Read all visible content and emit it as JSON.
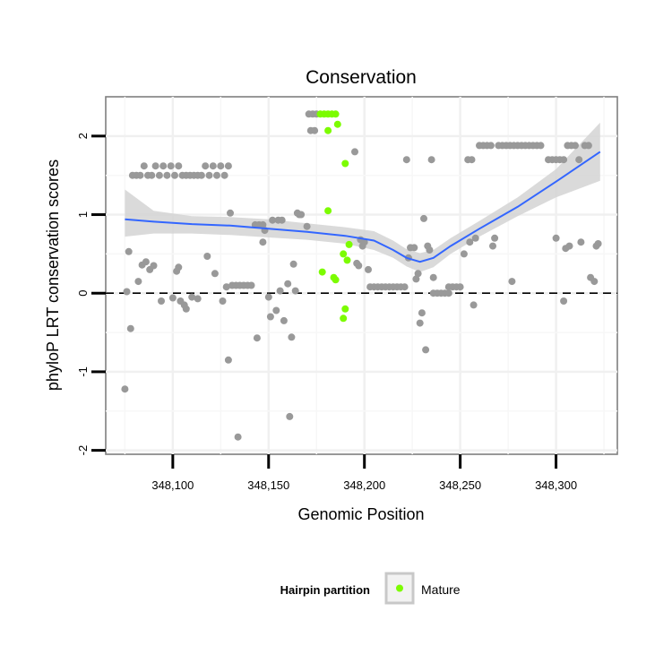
{
  "chart_data": {
    "type": "scatter",
    "title": "Conservation",
    "xlabel": "Genomic Position",
    "ylabel": "phyloP LRT conservation scores",
    "xlim": [
      348065,
      348332
    ],
    "ylim": [
      -2.05,
      2.5
    ],
    "x_ticks": [
      348100,
      348150,
      348200,
      348250,
      348300
    ],
    "x_tick_labels": [
      "348,100",
      "348,150",
      "348,200",
      "348,250",
      "348,300"
    ],
    "y_ticks": [
      -2,
      -1,
      0,
      1,
      2
    ],
    "y_tick_labels": [
      "-2",
      "-1",
      "0",
      "1",
      "2"
    ],
    "reference_line": {
      "y": 0,
      "style": "dashed"
    },
    "grid": true,
    "legend": {
      "title": "Hairpin partition",
      "position": "bottom",
      "entries": [
        {
          "label": "Mature",
          "color": "#7cfc00"
        }
      ]
    },
    "colors": {
      "other": "#999999",
      "mature": "#7cfc00",
      "smooth": "#3366ff",
      "band": "#d3d3d3"
    },
    "series": [
      {
        "name": "Other",
        "points": [
          [
            348075,
            -1.22
          ],
          [
            348076,
            0.02
          ],
          [
            348077,
            0.53
          ],
          [
            348078,
            -0.45
          ],
          [
            348079,
            1.5
          ],
          [
            348081,
            1.5
          ],
          [
            348083,
            1.5
          ],
          [
            348085,
            1.62
          ],
          [
            348087,
            1.5
          ],
          [
            348089,
            1.5
          ],
          [
            348091,
            1.62
          ],
          [
            348093,
            1.5
          ],
          [
            348095,
            1.62
          ],
          [
            348097,
            1.5
          ],
          [
            348099,
            1.62
          ],
          [
            348101,
            1.5
          ],
          [
            348103,
            1.62
          ],
          [
            348105,
            1.5
          ],
          [
            348107,
            1.5
          ],
          [
            348109,
            1.5
          ],
          [
            348111,
            1.5
          ],
          [
            348113,
            1.5
          ],
          [
            348115,
            1.5
          ],
          [
            348117,
            1.62
          ],
          [
            348119,
            1.5
          ],
          [
            348121,
            1.62
          ],
          [
            348123,
            1.5
          ],
          [
            348125,
            1.62
          ],
          [
            348127,
            1.5
          ],
          [
            348129,
            1.62
          ],
          [
            348082,
            0.15
          ],
          [
            348084,
            0.36
          ],
          [
            348086,
            0.4
          ],
          [
            348088,
            0.3
          ],
          [
            348090,
            0.35
          ],
          [
            348094,
            -0.1
          ],
          [
            348100,
            -0.06
          ],
          [
            348102,
            0.28
          ],
          [
            348103,
            0.33
          ],
          [
            348104,
            -0.1
          ],
          [
            348106,
            -0.15
          ],
          [
            348107,
            -0.2
          ],
          [
            348110,
            -0.05
          ],
          [
            348113,
            -0.07
          ],
          [
            348118,
            0.47
          ],
          [
            348122,
            0.25
          ],
          [
            348126,
            -0.1
          ],
          [
            348128,
            0.08
          ],
          [
            348129,
            -0.85
          ],
          [
            348130,
            1.02
          ],
          [
            348131,
            0.1
          ],
          [
            348133,
            0.1
          ],
          [
            348135,
            0.1
          ],
          [
            348137,
            0.1
          ],
          [
            348139,
            0.1
          ],
          [
            348141,
            0.1
          ],
          [
            348134,
            -1.83
          ],
          [
            348143,
            0.87
          ],
          [
            348145,
            0.87
          ],
          [
            348147,
            0.87
          ],
          [
            348144,
            -0.57
          ],
          [
            348147,
            0.65
          ],
          [
            348148,
            0.8
          ],
          [
            348150,
            -0.05
          ],
          [
            348151,
            -0.3
          ],
          [
            348152,
            0.93
          ],
          [
            348154,
            -0.22
          ],
          [
            348155,
            0.93
          ],
          [
            348156,
            0.03
          ],
          [
            348157,
            0.93
          ],
          [
            348158,
            -0.35
          ],
          [
            348160,
            0.12
          ],
          [
            348161,
            -1.57
          ],
          [
            348162,
            -0.56
          ],
          [
            348163,
            0.37
          ],
          [
            348164,
            0.03
          ],
          [
            348165,
            1.02
          ],
          [
            348166,
            1.0
          ],
          [
            348167,
            1.0
          ],
          [
            348170,
            0.85
          ],
          [
            348171,
            2.28
          ],
          [
            348173,
            2.28
          ],
          [
            348175,
            2.28
          ],
          [
            348172,
            2.07
          ],
          [
            348174,
            2.07
          ],
          [
            348195,
            1.8
          ],
          [
            348196,
            0.38
          ],
          [
            348197,
            0.35
          ],
          [
            348198,
            0.68
          ],
          [
            348199,
            0.6
          ],
          [
            348200,
            0.65
          ],
          [
            348202,
            0.3
          ],
          [
            348203,
            0.08
          ],
          [
            348205,
            0.08
          ],
          [
            348207,
            0.08
          ],
          [
            348209,
            0.08
          ],
          [
            348211,
            0.08
          ],
          [
            348213,
            0.08
          ],
          [
            348215,
            0.08
          ],
          [
            348217,
            0.08
          ],
          [
            348219,
            0.08
          ],
          [
            348221,
            0.08
          ],
          [
            348222,
            1.7
          ],
          [
            348223,
            0.45
          ],
          [
            348224,
            0.58
          ],
          [
            348226,
            0.58
          ],
          [
            348227,
            0.18
          ],
          [
            348228,
            0.25
          ],
          [
            348229,
            -0.38
          ],
          [
            348230,
            -0.25
          ],
          [
            348231,
            0.95
          ],
          [
            348232,
            -0.72
          ],
          [
            348233,
            0.6
          ],
          [
            348234,
            0.55
          ],
          [
            348235,
            1.7
          ],
          [
            348236,
            0.2
          ],
          [
            348236,
            0.0
          ],
          [
            348238,
            0.0
          ],
          [
            348240,
            0.0
          ],
          [
            348242,
            0.0
          ],
          [
            348244,
            0.0
          ],
          [
            348244,
            0.08
          ],
          [
            348246,
            0.08
          ],
          [
            348248,
            0.08
          ],
          [
            348250,
            0.08
          ],
          [
            348252,
            0.5
          ],
          [
            348254,
            1.7
          ],
          [
            348256,
            1.7
          ],
          [
            348255,
            0.65
          ],
          [
            348257,
            -0.15
          ],
          [
            348258,
            0.7
          ],
          [
            348260,
            1.88
          ],
          [
            348262,
            1.88
          ],
          [
            348264,
            1.88
          ],
          [
            348266,
            1.88
          ],
          [
            348267,
            0.6
          ],
          [
            348268,
            0.7
          ],
          [
            348270,
            1.88
          ],
          [
            348272,
            1.88
          ],
          [
            348274,
            1.88
          ],
          [
            348276,
            1.88
          ],
          [
            348277,
            0.15
          ],
          [
            348278,
            1.88
          ],
          [
            348280,
            1.88
          ],
          [
            348282,
            1.88
          ],
          [
            348284,
            1.88
          ],
          [
            348286,
            1.88
          ],
          [
            348288,
            1.88
          ],
          [
            348290,
            1.88
          ],
          [
            348292,
            1.88
          ],
          [
            348296,
            1.7
          ],
          [
            348298,
            1.7
          ],
          [
            348300,
            1.7
          ],
          [
            348302,
            1.7
          ],
          [
            348304,
            1.7
          ],
          [
            348300,
            0.7
          ],
          [
            348304,
            -0.1
          ],
          [
            348305,
            0.57
          ],
          [
            348306,
            1.88
          ],
          [
            348308,
            1.88
          ],
          [
            348307,
            0.6
          ],
          [
            348310,
            1.88
          ],
          [
            348312,
            1.7
          ],
          [
            348313,
            0.65
          ],
          [
            348315,
            1.88
          ],
          [
            348317,
            1.88
          ],
          [
            348318,
            0.2
          ],
          [
            348320,
            0.15
          ],
          [
            348321,
            0.6
          ],
          [
            348322,
            0.63
          ]
        ]
      },
      {
        "name": "Mature",
        "points": [
          [
            348177,
            2.28
          ],
          [
            348179,
            2.28
          ],
          [
            348181,
            2.28
          ],
          [
            348183,
            2.28
          ],
          [
            348185,
            2.28
          ],
          [
            348181,
            2.07
          ],
          [
            348186,
            2.15
          ],
          [
            348190,
            1.65
          ],
          [
            348181,
            1.05
          ],
          [
            348192,
            0.62
          ],
          [
            348178,
            0.27
          ],
          [
            348184,
            0.2
          ],
          [
            348185,
            0.17
          ],
          [
            348189,
            0.5
          ],
          [
            348191,
            0.42
          ],
          [
            348190,
            -0.2
          ],
          [
            348189,
            -0.32
          ]
        ]
      }
    ],
    "smooth": {
      "method": "loess",
      "x": [
        348075,
        348090,
        348110,
        348130,
        348150,
        348170,
        348190,
        348205,
        348215,
        348222,
        348229,
        348236,
        348245,
        348260,
        348280,
        348300,
        348323
      ],
      "y": [
        0.94,
        0.91,
        0.88,
        0.86,
        0.82,
        0.78,
        0.73,
        0.67,
        0.55,
        0.45,
        0.4,
        0.45,
        0.6,
        0.82,
        1.1,
        1.42,
        1.8
      ],
      "lower": [
        0.72,
        0.76,
        0.76,
        0.74,
        0.71,
        0.68,
        0.63,
        0.55,
        0.45,
        0.34,
        0.27,
        0.33,
        0.5,
        0.72,
        0.98,
        1.22,
        1.43
      ],
      "upper": [
        1.32,
        1.05,
        0.98,
        0.97,
        0.94,
        0.89,
        0.84,
        0.79,
        0.67,
        0.56,
        0.51,
        0.55,
        0.7,
        0.92,
        1.22,
        1.58,
        2.17
      ]
    }
  }
}
